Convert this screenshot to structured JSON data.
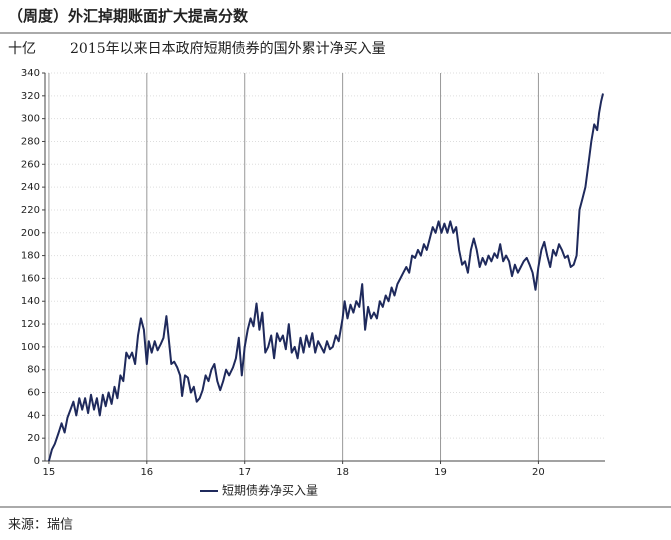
{
  "chart_data": {
    "type": "line",
    "title": "（周度）外汇掉期账面扩大提高分数",
    "unit": "十亿",
    "subtitle": "2015年以来日本政府短期债券的国外累计净买入量",
    "source": "来源：瑞信",
    "x": [
      15.0,
      15.03,
      15.06,
      15.1,
      15.13,
      15.16,
      15.19,
      15.22,
      15.25,
      15.28,
      15.31,
      15.34,
      15.37,
      15.4,
      15.43,
      15.46,
      15.49,
      15.52,
      15.55,
      15.58,
      15.61,
      15.64,
      15.67,
      15.7,
      15.73,
      15.76,
      15.79,
      15.82,
      15.85,
      15.88,
      15.91,
      15.94,
      15.97,
      16.0,
      16.02,
      16.05,
      16.08,
      16.11,
      16.14,
      16.17,
      16.2,
      16.22,
      16.25,
      16.28,
      16.31,
      16.34,
      16.36,
      16.39,
      16.42,
      16.45,
      16.48,
      16.51,
      16.54,
      16.57,
      16.6,
      16.63,
      16.66,
      16.69,
      16.72,
      16.75,
      16.78,
      16.81,
      16.84,
      16.88,
      16.91,
      16.94,
      16.97,
      17.0,
      17.03,
      17.06,
      17.09,
      17.12,
      17.15,
      17.18,
      17.21,
      17.24,
      17.27,
      17.3,
      17.33,
      17.36,
      17.39,
      17.42,
      17.45,
      17.48,
      17.51,
      17.54,
      17.57,
      17.6,
      17.63,
      17.66,
      17.69,
      17.72,
      17.75,
      17.78,
      17.81,
      17.84,
      17.87,
      17.9,
      17.93,
      17.96,
      18.0,
      18.02,
      18.05,
      18.08,
      18.11,
      18.14,
      18.17,
      18.2,
      18.23,
      18.26,
      18.29,
      18.32,
      18.35,
      18.38,
      18.41,
      18.44,
      18.47,
      18.5,
      18.53,
      18.56,
      18.59,
      18.62,
      18.65,
      18.68,
      18.71,
      18.74,
      18.77,
      18.8,
      18.83,
      18.86,
      18.89,
      18.92,
      18.95,
      18.98,
      19.01,
      19.04,
      19.07,
      19.1,
      19.13,
      19.16,
      19.19,
      19.22,
      19.25,
      19.28,
      19.31,
      19.34,
      19.37,
      19.4,
      19.43,
      19.46,
      19.49,
      19.52,
      19.55,
      19.58,
      19.61,
      19.64,
      19.67,
      19.7,
      19.73,
      19.76,
      19.79,
      19.82,
      19.85,
      19.88,
      19.91,
      19.94,
      19.97,
      20.0,
      20.03,
      20.06,
      20.09,
      20.12,
      20.15,
      20.18,
      20.21,
      20.24,
      20.27,
      20.3,
      20.33,
      20.36,
      20.39,
      20.42,
      20.45,
      20.48,
      20.51,
      20.54,
      20.57,
      20.6,
      20.62,
      20.64,
      20.66
    ],
    "series": [
      {
        "name": "短期债券净买入量",
        "color": "#1f2a5c",
        "values": [
          0,
          10,
          15,
          25,
          33,
          25,
          38,
          45,
          52,
          40,
          55,
          45,
          55,
          42,
          58,
          45,
          55,
          40,
          58,
          48,
          60,
          50,
          65,
          55,
          75,
          70,
          95,
          90,
          95,
          85,
          110,
          125,
          115,
          85,
          105,
          95,
          105,
          97,
          102,
          108,
          127,
          110,
          85,
          87,
          82,
          75,
          57,
          75,
          73,
          60,
          65,
          52,
          55,
          62,
          75,
          70,
          80,
          85,
          70,
          62,
          70,
          80,
          75,
          82,
          90,
          108,
          75,
          100,
          115,
          125,
          118,
          138,
          115,
          130,
          95,
          100,
          110,
          90,
          112,
          105,
          110,
          98,
          120,
          95,
          100,
          90,
          108,
          95,
          110,
          100,
          112,
          95,
          105,
          100,
          95,
          105,
          98,
          100,
          110,
          105,
          125,
          140,
          125,
          137,
          130,
          140,
          135,
          155,
          115,
          135,
          125,
          130,
          125,
          140,
          135,
          145,
          140,
          152,
          145,
          155,
          160,
          165,
          170,
          165,
          180,
          178,
          185,
          180,
          190,
          185,
          195,
          205,
          200,
          210,
          200,
          208,
          200,
          210,
          200,
          205,
          185,
          172,
          175,
          165,
          185,
          195,
          185,
          170,
          178,
          172,
          180,
          175,
          182,
          178,
          190,
          175,
          180,
          175,
          162,
          172,
          165,
          170,
          175,
          178,
          172,
          165,
          150,
          170,
          185,
          192,
          180,
          170,
          185,
          180,
          190,
          185,
          178,
          180,
          170,
          172,
          180,
          220,
          230,
          240,
          260,
          280,
          295,
          290,
          305,
          315,
          322
        ]
      }
    ],
    "xlim": [
      14.96,
      20.68
    ],
    "xticks": [
      15,
      16,
      17,
      18,
      19,
      20
    ],
    "ylim": [
      0,
      340
    ],
    "yticks": [
      0,
      20,
      40,
      60,
      80,
      100,
      120,
      140,
      160,
      180,
      200,
      220,
      240,
      260,
      280,
      300,
      320,
      340
    ],
    "grid": true
  }
}
